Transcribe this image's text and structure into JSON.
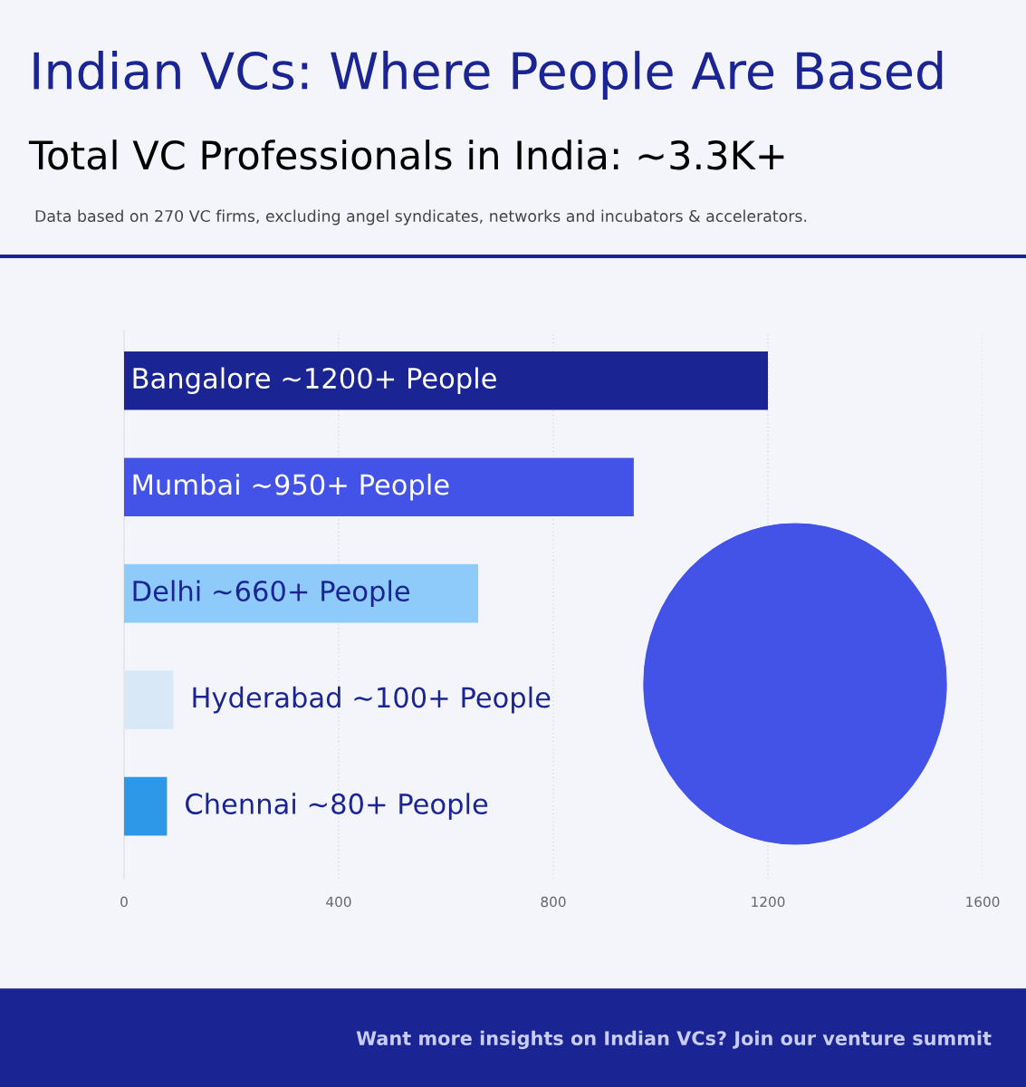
{
  "chart_data": {
    "type": "bar",
    "orientation": "horizontal",
    "title": "Indian VCs: Where People Are Based",
    "subtitle": "Total VC Professionals in India: ~3.3K+",
    "categories": [
      "Bangalore ~1200+ People",
      "Mumbai ~950+ People",
      "Delhi ~660+ People",
      "Hyderabad ~100+ People",
      "Chennai ~80+ People"
    ],
    "values": [
      1200,
      950,
      660,
      92,
      80
    ],
    "colors": [
      "#1a2593",
      "#4353e8",
      "#8fcbfa",
      "#d8e8f6",
      "#2d97e8"
    ],
    "xlim": [
      0,
      1600
    ],
    "xticks": [
      0,
      400,
      800,
      1200,
      1600
    ],
    "grid": "x",
    "annotations": [
      "Data based on 270 VC firms, excluding angel syndicates, networks and incubators & accelerators.",
      "Want more insights on Indian VCs? Join our venture summit"
    ]
  }
}
